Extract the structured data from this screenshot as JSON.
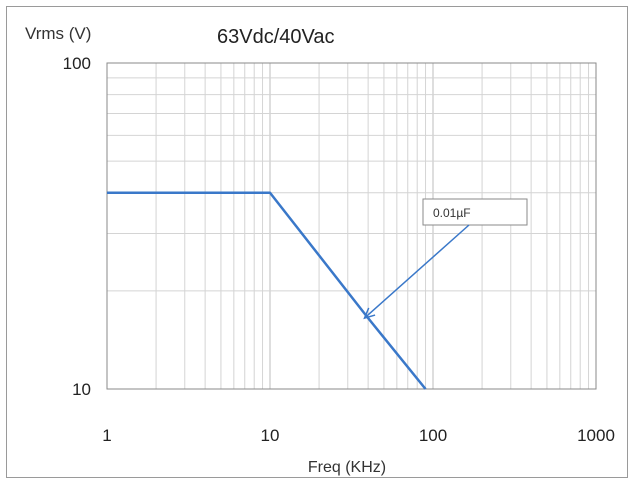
{
  "chart_data": {
    "type": "line",
    "title": "63Vdc/40Vac",
    "ylabel": "Vrms (V)",
    "xlabel": "Freq (KHz)",
    "x_scale": "log",
    "y_scale": "log",
    "xlim": [
      1,
      1000
    ],
    "ylim": [
      10,
      100
    ],
    "x_ticks": [
      "1",
      "10",
      "100",
      "1000"
    ],
    "y_ticks": [
      "10",
      "100"
    ],
    "grid": true,
    "series": [
      {
        "name": "0.01µF",
        "color": "#3a78c9",
        "x": [
          1,
          10,
          40,
          90
        ],
        "y": [
          40,
          40,
          16.5,
          10
        ]
      }
    ],
    "annotations": [
      {
        "text": "0.01µF",
        "target_x": 38,
        "target_y": 16.5
      }
    ]
  }
}
